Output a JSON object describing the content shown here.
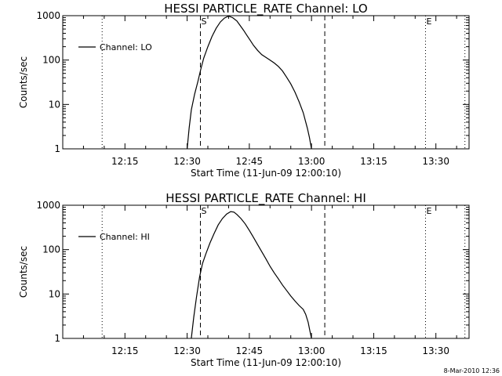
{
  "chart_data": [
    {
      "type": "line",
      "title": "HESSI PARTICLE_RATE Channel: LO",
      "xlabel": "Start Time (11-Jun-09 12:00:10)",
      "ylabel": "Counts/sec",
      "yscale": "log",
      "ylim": [
        1,
        1000
      ],
      "xlim_minutes": [
        0,
        98
      ],
      "x_ticks": [
        {
          "label": "12:15",
          "minutes": 15
        },
        {
          "label": "12:30",
          "minutes": 30
        },
        {
          "label": "12:45",
          "minutes": 45
        },
        {
          "label": "13:00",
          "minutes": 60
        },
        {
          "label": "13:15",
          "minutes": 75
        },
        {
          "label": "13:30",
          "minutes": 90
        }
      ],
      "y_ticks": [
        {
          "label": "1",
          "value": 1
        },
        {
          "label": "10",
          "value": 10
        },
        {
          "label": "100",
          "value": 100
        },
        {
          "label": "1000",
          "value": 1000
        }
      ],
      "legend": {
        "label": "Channel: LO",
        "position": "top-left"
      },
      "markers": [
        {
          "label": "S",
          "minutes": 33.2,
          "style": "dashed"
        },
        {
          "label": "",
          "minutes": 63.2,
          "style": "dashed"
        },
        {
          "label": "",
          "minutes": 9.5,
          "style": "dotted"
        },
        {
          "label": "E",
          "minutes": 87.5,
          "style": "dotted"
        },
        {
          "label": "",
          "minutes": 97.0,
          "style": "dotted"
        }
      ],
      "series": [
        {
          "name": "Channel: LO",
          "x_minutes": [
            30.0,
            30.5,
            31.0,
            31.8,
            32.6,
            33.3,
            34.0,
            35.0,
            36.0,
            37.0,
            38.0,
            39.0,
            40.0,
            41.0,
            42.0,
            42.8,
            43.6,
            44.4,
            45.2,
            46.0,
            47.0,
            48.0,
            49.0,
            50.0,
            51.0,
            52.0,
            53.0,
            54.0,
            55.0,
            56.0,
            57.0,
            58.0,
            59.0,
            59.5,
            60.0
          ],
          "y_values": [
            1.0,
            3.0,
            7.5,
            17,
            33,
            62,
            110,
            200,
            340,
            520,
            720,
            880,
            980,
            900,
            760,
            600,
            470,
            360,
            280,
            215,
            165,
            132,
            115,
            100,
            86,
            72,
            57,
            41,
            29,
            19,
            11.5,
            6.5,
            2.9,
            1.8,
            1.0
          ]
        }
      ]
    },
    {
      "type": "line",
      "title": "HESSI PARTICLE_RATE Channel: HI",
      "xlabel": "Start Time (11-Jun-09 12:00:10)",
      "ylabel": "Counts/sec",
      "yscale": "log",
      "ylim": [
        1,
        1000
      ],
      "xlim_minutes": [
        0,
        98
      ],
      "x_ticks": [
        {
          "label": "12:15",
          "minutes": 15
        },
        {
          "label": "12:30",
          "minutes": 30
        },
        {
          "label": "12:45",
          "minutes": 45
        },
        {
          "label": "13:00",
          "minutes": 60
        },
        {
          "label": "13:15",
          "minutes": 75
        },
        {
          "label": "13:30",
          "minutes": 90
        }
      ],
      "y_ticks": [
        {
          "label": "1",
          "value": 1
        },
        {
          "label": "10",
          "value": 10
        },
        {
          "label": "100",
          "value": 100
        },
        {
          "label": "1000",
          "value": 1000
        }
      ],
      "legend": {
        "label": "Channel: HI",
        "position": "top-left"
      },
      "markers": [
        {
          "label": "S",
          "minutes": 33.2,
          "style": "dashed"
        },
        {
          "label": "",
          "minutes": 63.2,
          "style": "dashed"
        },
        {
          "label": "",
          "minutes": 9.5,
          "style": "dotted"
        },
        {
          "label": "E",
          "minutes": 87.5,
          "style": "dotted"
        },
        {
          "label": "",
          "minutes": 97.0,
          "style": "dotted"
        }
      ],
      "series": [
        {
          "name": "Channel: HI",
          "x_minutes": [
            31.0,
            31.6,
            32.3,
            33.0,
            33.7,
            34.5,
            35.5,
            36.5,
            37.5,
            38.5,
            39.5,
            40.5,
            41.3,
            42.0,
            43.0,
            44.0,
            45.0,
            46.0,
            47.0,
            48.0,
            49.0,
            50.0,
            51.0,
            52.0,
            53.0,
            54.0,
            55.0,
            56.0,
            57.0,
            58.0,
            58.6,
            59.2,
            59.6,
            60.0
          ],
          "y_values": [
            1.0,
            3.0,
            9.0,
            24,
            48,
            80,
            140,
            230,
            360,
            500,
            630,
            720,
            700,
            620,
            500,
            380,
            270,
            190,
            130,
            90,
            62,
            42,
            30,
            22,
            16,
            12,
            9.0,
            7.0,
            5.5,
            4.5,
            3.5,
            2.3,
            1.5,
            1.0
          ]
        }
      ]
    }
  ],
  "footer": {
    "timestamp": "8-Mar-2010 12:36"
  }
}
